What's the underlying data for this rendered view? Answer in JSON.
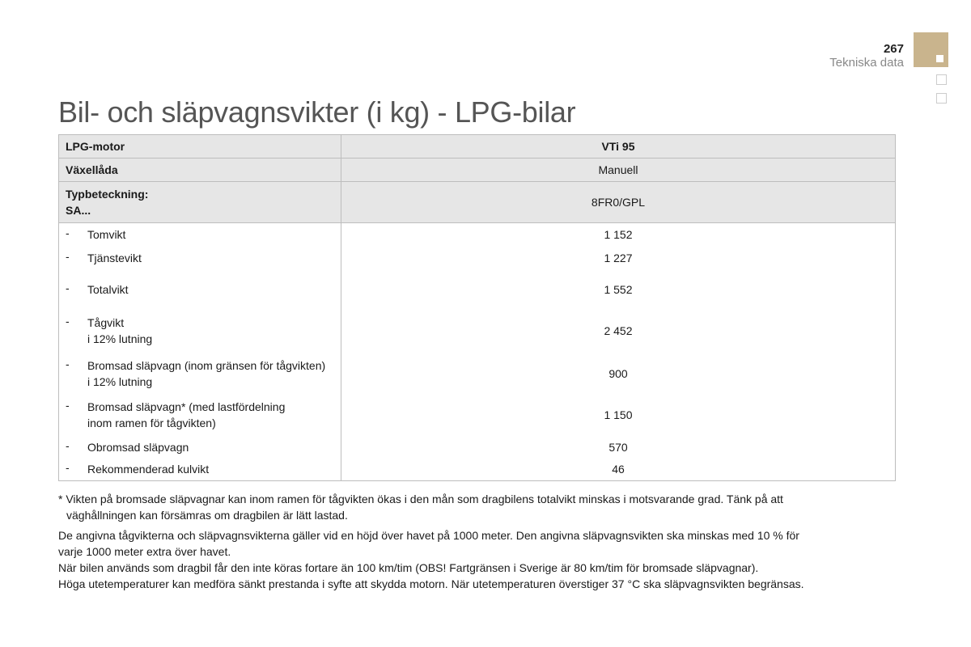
{
  "header": {
    "page_number": "267",
    "section": "Tekniska data",
    "accent_color": "#c9b48d"
  },
  "title": "Bil- och släpvagnsvikter (i kg) - LPG-bilar",
  "table": {
    "head": [
      {
        "label": "LPG-motor",
        "value": "VTi 95"
      },
      {
        "label": "Växellåda",
        "value": "Manuell"
      },
      {
        "label": "Typbeteckning:",
        "label2": "SA...",
        "value": "8FR0/GPL"
      }
    ],
    "rows": [
      {
        "label": "Tomvikt",
        "label2": "",
        "value": "1 152"
      },
      {
        "label": "Tjänstevikt",
        "label2": "",
        "value": "1 227"
      },
      {
        "label": "Totalvikt",
        "label2": "",
        "value": "1 552"
      },
      {
        "label": "Tågvikt",
        "label2": "i 12% lutning",
        "value": "2 452"
      },
      {
        "label": "Bromsad släpvagn (inom gränsen för tågvikten)",
        "label2": "i 12% lutning",
        "value": "900"
      },
      {
        "label": "Bromsad släpvagn* (med lastfördelning",
        "label2": "inom ramen för tågvikten)",
        "value": "1 150"
      },
      {
        "label": "Obromsad släpvagn",
        "label2": "",
        "value": "570"
      },
      {
        "label": "Rekommenderad kulvikt",
        "label2": "",
        "value": "46"
      }
    ]
  },
  "footnote": [
    "* Vikten på bromsade släpvagnar kan inom ramen för tågvikten ökas i den mån som dragbilens totalvikt minskas i motsvarande grad. Tänk på att",
    "väghållningen kan försämras om dragbilen är lätt lastad."
  ],
  "notes": [
    "De angivna tågvikterna och släpvagnsvikterna gäller vid en höjd över havet på 1000 meter. Den angivna släpvagnsvikten ska minskas med 10 % för",
    "varje 1000 meter extra över havet.",
    "När bilen används som dragbil får den inte köras fortare än 100 km/tim (OBS! Fartgränsen i Sverige är 80 km/tim för bromsade släpvagnar).",
    "Höga utetemperaturer kan medföra sänkt prestanda i syfte att skydda motorn. När utetemperaturen överstiger 37 °C ska släpvagnsvikten begränsas."
  ]
}
